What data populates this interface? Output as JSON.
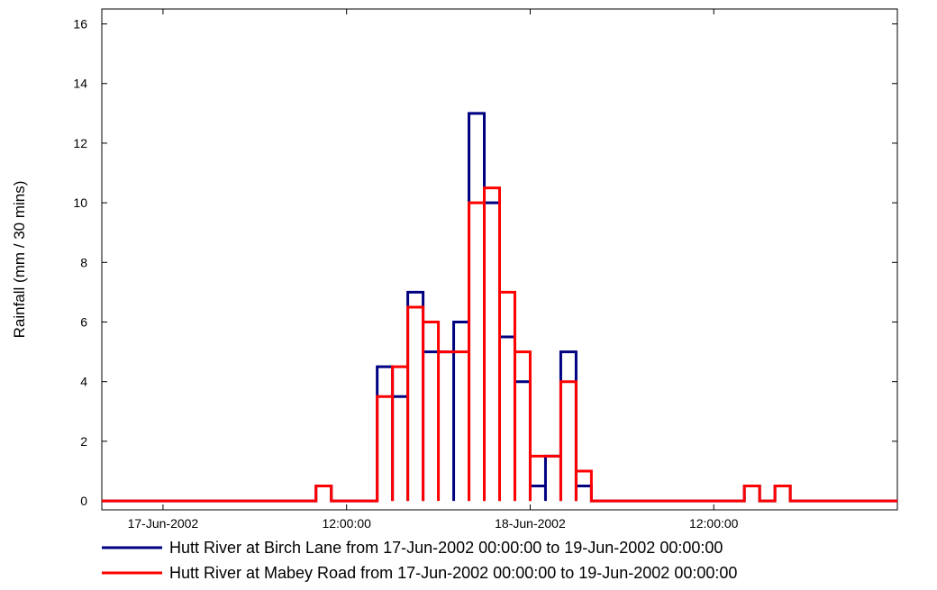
{
  "chart_data": {
    "type": "line",
    "step": true,
    "interval": "30 min",
    "title": "",
    "xlabel": "",
    "ylabel": "Rainfall (mm / 30 mins)",
    "x_range": [
      "16-Jun-2002 20:00:00",
      "19-Jun-2002 00:00:00"
    ],
    "ylim": [
      -0.3,
      16.5
    ],
    "y_ticks": [
      0,
      2,
      4,
      6,
      8,
      10,
      12,
      14,
      16
    ],
    "x_ticks": [
      {
        "label": "17-Jun-2002",
        "time": "17-Jun-2002 00:00:00"
      },
      {
        "label": "12:00:00",
        "time": "17-Jun-2002 12:00:00"
      },
      {
        "label": "18-Jun-2002",
        "time": "18-Jun-2002 00:00:00"
      },
      {
        "label": "12:00:00",
        "time": "18-Jun-2002 12:00:00"
      }
    ],
    "grid": false,
    "legend_position": "bottom",
    "series": [
      {
        "name": "Hutt River at Birch Lane from 17-Jun-2002 00:00:00 to 19-Jun-2002 00:00:00",
        "color": "#000080",
        "steps": [
          {
            "start": "17-Jun-2002 10:00:00",
            "end": "17-Jun-2002 11:00:00",
            "value": 0.5
          },
          {
            "start": "17-Jun-2002 14:00:00",
            "end": "17-Jun-2002 15:00:00",
            "value": 4.5
          },
          {
            "start": "17-Jun-2002 15:00:00",
            "end": "17-Jun-2002 16:00:00",
            "value": 3.5
          },
          {
            "start": "17-Jun-2002 16:00:00",
            "end": "17-Jun-2002 17:00:00",
            "value": 7
          },
          {
            "start": "17-Jun-2002 17:00:00",
            "end": "17-Jun-2002 19:00:00",
            "value": 5
          },
          {
            "start": "17-Jun-2002 19:00:00",
            "end": "17-Jun-2002 20:00:00",
            "value": 6
          },
          {
            "start": "17-Jun-2002 20:00:00",
            "end": "17-Jun-2002 21:00:00",
            "value": 13
          },
          {
            "start": "17-Jun-2002 21:00:00",
            "end": "17-Jun-2002 22:00:00",
            "value": 10
          },
          {
            "start": "17-Jun-2002 22:00:00",
            "end": "17-Jun-2002 23:00:00",
            "value": 5.5
          },
          {
            "start": "17-Jun-2002 23:00:00",
            "end": "18-Jun-2002 00:00:00",
            "value": 4
          },
          {
            "start": "18-Jun-2002 00:00:00",
            "end": "18-Jun-2002 01:00:00",
            "value": 0.5
          },
          {
            "start": "18-Jun-2002 01:00:00",
            "end": "18-Jun-2002 02:00:00",
            "value": 1.5
          },
          {
            "start": "18-Jun-2002 02:00:00",
            "end": "18-Jun-2002 03:00:00",
            "value": 5
          },
          {
            "start": "18-Jun-2002 03:00:00",
            "end": "18-Jun-2002 04:00:00",
            "value": 0.5
          },
          {
            "start": "18-Jun-2002 14:00:00",
            "end": "18-Jun-2002 15:00:00",
            "value": 0.5
          },
          {
            "start": "18-Jun-2002 16:00:00",
            "end": "18-Jun-2002 17:00:00",
            "value": 0.5
          }
        ]
      },
      {
        "name": "Hutt River at Mabey Road from 17-Jun-2002 00:00:00 to 19-Jun-2002 00:00:00",
        "color": "#ff0000",
        "steps": [
          {
            "start": "17-Jun-2002 10:00:00",
            "end": "17-Jun-2002 11:00:00",
            "value": 0.5
          },
          {
            "start": "17-Jun-2002 14:00:00",
            "end": "17-Jun-2002 15:00:00",
            "value": 3.5
          },
          {
            "start": "17-Jun-2002 15:00:00",
            "end": "17-Jun-2002 16:00:00",
            "value": 4.5
          },
          {
            "start": "17-Jun-2002 16:00:00",
            "end": "17-Jun-2002 17:00:00",
            "value": 6.5
          },
          {
            "start": "17-Jun-2002 17:00:00",
            "end": "17-Jun-2002 18:00:00",
            "value": 6
          },
          {
            "start": "17-Jun-2002 18:00:00",
            "end": "17-Jun-2002 20:00:00",
            "value": 5
          },
          {
            "start": "17-Jun-2002 20:00:00",
            "end": "17-Jun-2002 21:00:00",
            "value": 10
          },
          {
            "start": "17-Jun-2002 21:00:00",
            "end": "17-Jun-2002 22:00:00",
            "value": 10.5
          },
          {
            "start": "17-Jun-2002 22:00:00",
            "end": "17-Jun-2002 23:00:00",
            "value": 7
          },
          {
            "start": "17-Jun-2002 23:00:00",
            "end": "18-Jun-2002 00:00:00",
            "value": 5
          },
          {
            "start": "18-Jun-2002 00:00:00",
            "end": "18-Jun-2002 02:00:00",
            "value": 1.5
          },
          {
            "start": "18-Jun-2002 02:00:00",
            "end": "18-Jun-2002 03:00:00",
            "value": 4
          },
          {
            "start": "18-Jun-2002 03:00:00",
            "end": "18-Jun-2002 04:00:00",
            "value": 1
          },
          {
            "start": "18-Jun-2002 14:00:00",
            "end": "18-Jun-2002 15:00:00",
            "value": 0.5
          },
          {
            "start": "18-Jun-2002 16:00:00",
            "end": "18-Jun-2002 17:00:00",
            "value": 0.5
          }
        ]
      }
    ]
  }
}
